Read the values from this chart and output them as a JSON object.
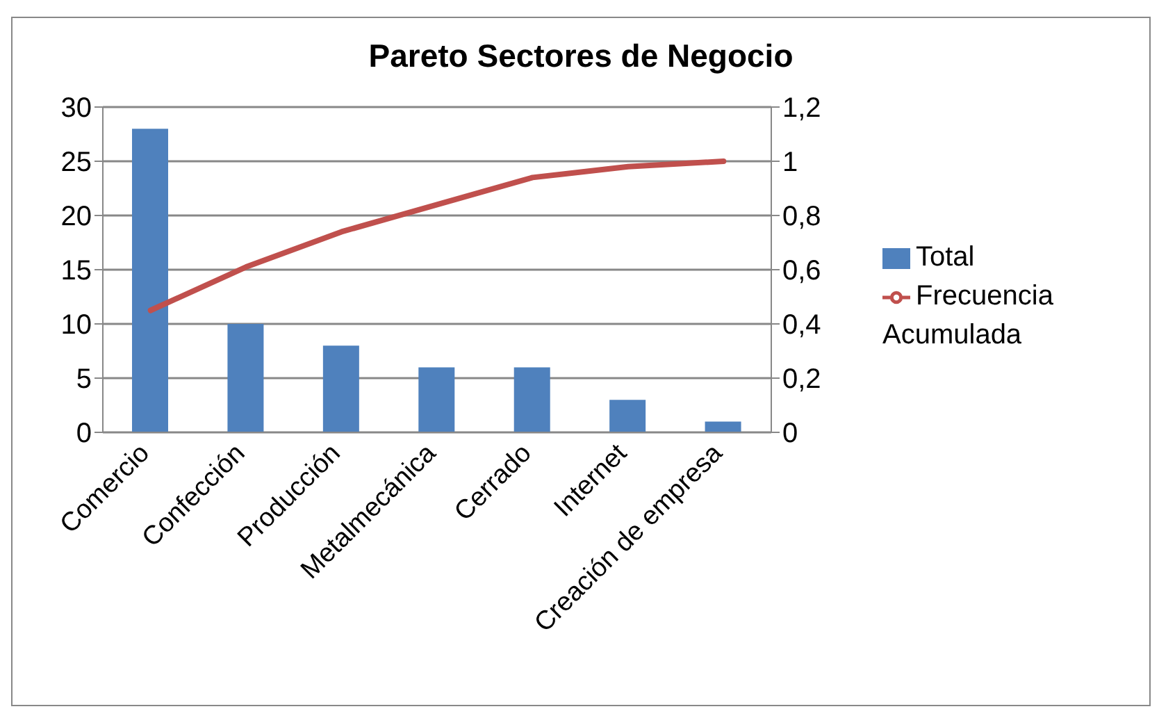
{
  "chart_data": {
    "type": "bar",
    "title": "Pareto Sectores de Negocio",
    "categories": [
      "Comercio",
      "Confección",
      "Producción",
      "Metalmecánica",
      "Cerrado",
      "Internet",
      "Creación de empresa"
    ],
    "series": [
      {
        "name": "Total",
        "color": "#4f81bd",
        "values": [
          28,
          10,
          8,
          6,
          6,
          3,
          1
        ]
      },
      {
        "name": "Frecuencia Acumulada",
        "type": "line",
        "axis": "y2",
        "color": "#c0504d",
        "values": [
          0.45,
          0.61,
          0.74,
          0.84,
          0.94,
          0.98,
          1.0
        ]
      }
    ],
    "ylim": [
      0,
      30
    ],
    "yticks": [
      0,
      5,
      10,
      15,
      20,
      25,
      30
    ],
    "y2lim": [
      0,
      1.2
    ],
    "y2ticks": [
      0,
      {
        "value": 0.2,
        "label": "0,2"
      },
      {
        "value": 0.4,
        "label": "0,4"
      },
      {
        "value": 0.6,
        "label": "0,6"
      },
      {
        "value": 0.8,
        "label": "0,8"
      },
      1,
      {
        "value": 1.2,
        "label": "1,2"
      }
    ],
    "grid": "y",
    "legend": "right",
    "marker": "none",
    "line_style": "solid"
  }
}
